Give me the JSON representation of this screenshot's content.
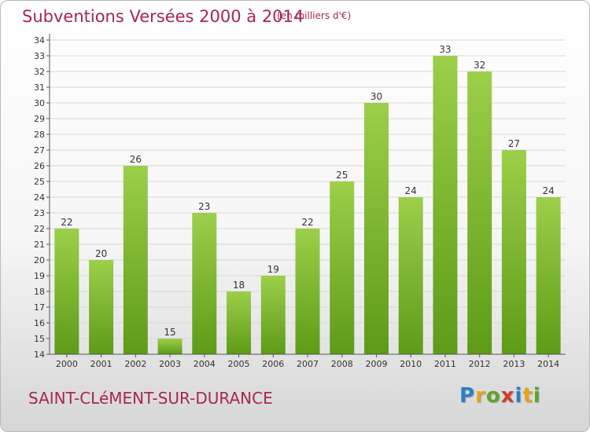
{
  "header": {
    "title": "Subventions Versées 2000 à 2014",
    "subtitle": "(en milliers d'€)"
  },
  "footer": {
    "commune": "SAINT-CLéMENT-SUR-DURANCE",
    "logo_letters": [
      "P",
      "r",
      "o",
      "x",
      "i",
      "t",
      "i"
    ],
    "logo_colors": [
      "#2b7fc4",
      "#e7a21b",
      "#5ea42a",
      "#d23a2a",
      "#2b7fc4",
      "#e7a21b",
      "#5ea42a"
    ]
  },
  "chart_data": {
    "type": "bar",
    "title": "Subventions Versées 2000 à 2014",
    "subtitle": "(en milliers d'€)",
    "xlabel": "",
    "ylabel": "",
    "categories": [
      "2000",
      "2001",
      "2002",
      "2003",
      "2004",
      "2005",
      "2006",
      "2007",
      "2008",
      "2009",
      "2010",
      "2011",
      "2012",
      "2013",
      "2014"
    ],
    "values": [
      22,
      20,
      26,
      15,
      23,
      18,
      19,
      22,
      25,
      30,
      24,
      33,
      32,
      27,
      24
    ],
    "ylim": [
      14,
      34
    ],
    "yticks": [
      14,
      15,
      16,
      17,
      18,
      19,
      20,
      21,
      22,
      23,
      24,
      25,
      26,
      27,
      28,
      29,
      30,
      31,
      32,
      33,
      34
    ],
    "grid": true,
    "legend": "none",
    "bar_color_top": "#9ccf4a",
    "bar_color_bottom": "#5e9b17",
    "grid_color": "#d8d8d8"
  }
}
